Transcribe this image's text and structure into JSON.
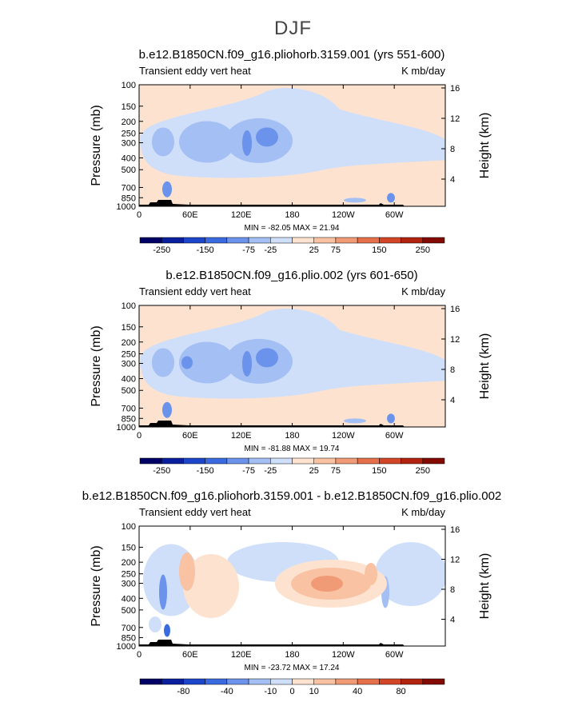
{
  "page_title": "DJF",
  "colors": {
    "blue_scale": [
      "#000066",
      "#0a1f9e",
      "#1c45cc",
      "#3a6ae0",
      "#6b93ec",
      "#a3bff3",
      "#cfdffa"
    ],
    "red_scale": [
      "#fde3cf",
      "#f8c2a3",
      "#f19a76",
      "#e5704a",
      "#d24526",
      "#b2230f",
      "#820a03"
    ],
    "topography": "#000000"
  },
  "chart_data": [
    {
      "type": "heatmap",
      "title": "b.e12.B1850CN.f09_g16.pliohorb.3159.001 (yrs 551-600)",
      "subtitle_left": "Transient eddy vert heat",
      "subtitle_right": "K mb/day",
      "ylabel": "Pressure (mb)",
      "ylabel_right": "Height (km)",
      "x_ticks": [
        "0",
        "60E",
        "120E",
        "180",
        "120W",
        "60W"
      ],
      "y_ticks": [
        "100",
        "150",
        "200",
        "250",
        "300",
        "400",
        "500",
        "700",
        "850",
        "1000"
      ],
      "y_right_ticks": [
        "16",
        "12",
        "8",
        "4"
      ],
      "stats_text": "MIN = -82.05   MAX =  21.94",
      "min": -82.05,
      "max": 21.94,
      "colorbar_labels": [
        "-250",
        "-150",
        "-75",
        "-25",
        "25",
        "75",
        "150",
        "250"
      ]
    },
    {
      "type": "heatmap",
      "title": "b.e12.B1850CN.f09_g16.plio.002 (yrs 601-650)",
      "subtitle_left": "Transient eddy vert heat",
      "subtitle_right": "K mb/day",
      "ylabel": "Pressure (mb)",
      "ylabel_right": "Height (km)",
      "x_ticks": [
        "0",
        "60E",
        "120E",
        "180",
        "120W",
        "60W"
      ],
      "y_ticks": [
        "100",
        "150",
        "200",
        "250",
        "300",
        "400",
        "500",
        "700",
        "850",
        "1000"
      ],
      "y_right_ticks": [
        "16",
        "12",
        "8",
        "4"
      ],
      "stats_text": "MIN = -81.88   MAX =  19.74",
      "min": -81.88,
      "max": 19.74,
      "colorbar_labels": [
        "-250",
        "-150",
        "-75",
        "-25",
        "25",
        "75",
        "150",
        "250"
      ]
    },
    {
      "type": "heatmap",
      "title": "b.e12.B1850CN.f09_g16.pliohorb.3159.001 - b.e12.B1850CN.f09_g16.plio.002",
      "subtitle_left": "Transient eddy vert heat",
      "subtitle_right": "K mb/day",
      "ylabel": "Pressure (mb)",
      "ylabel_right": "Height (km)",
      "x_ticks": [
        "0",
        "60E",
        "120E",
        "180",
        "120W",
        "60W"
      ],
      "y_ticks": [
        "100",
        "150",
        "200",
        "250",
        "300",
        "400",
        "500",
        "700",
        "850",
        "1000"
      ],
      "y_right_ticks": [
        "16",
        "12",
        "8",
        "4"
      ],
      "stats_text": "MIN = -23.72   MAX =  17.24",
      "min": -23.72,
      "max": 17.24,
      "colorbar_labels": [
        "-80",
        "-40",
        "-10",
        "0",
        "10",
        "40",
        "80"
      ]
    }
  ]
}
